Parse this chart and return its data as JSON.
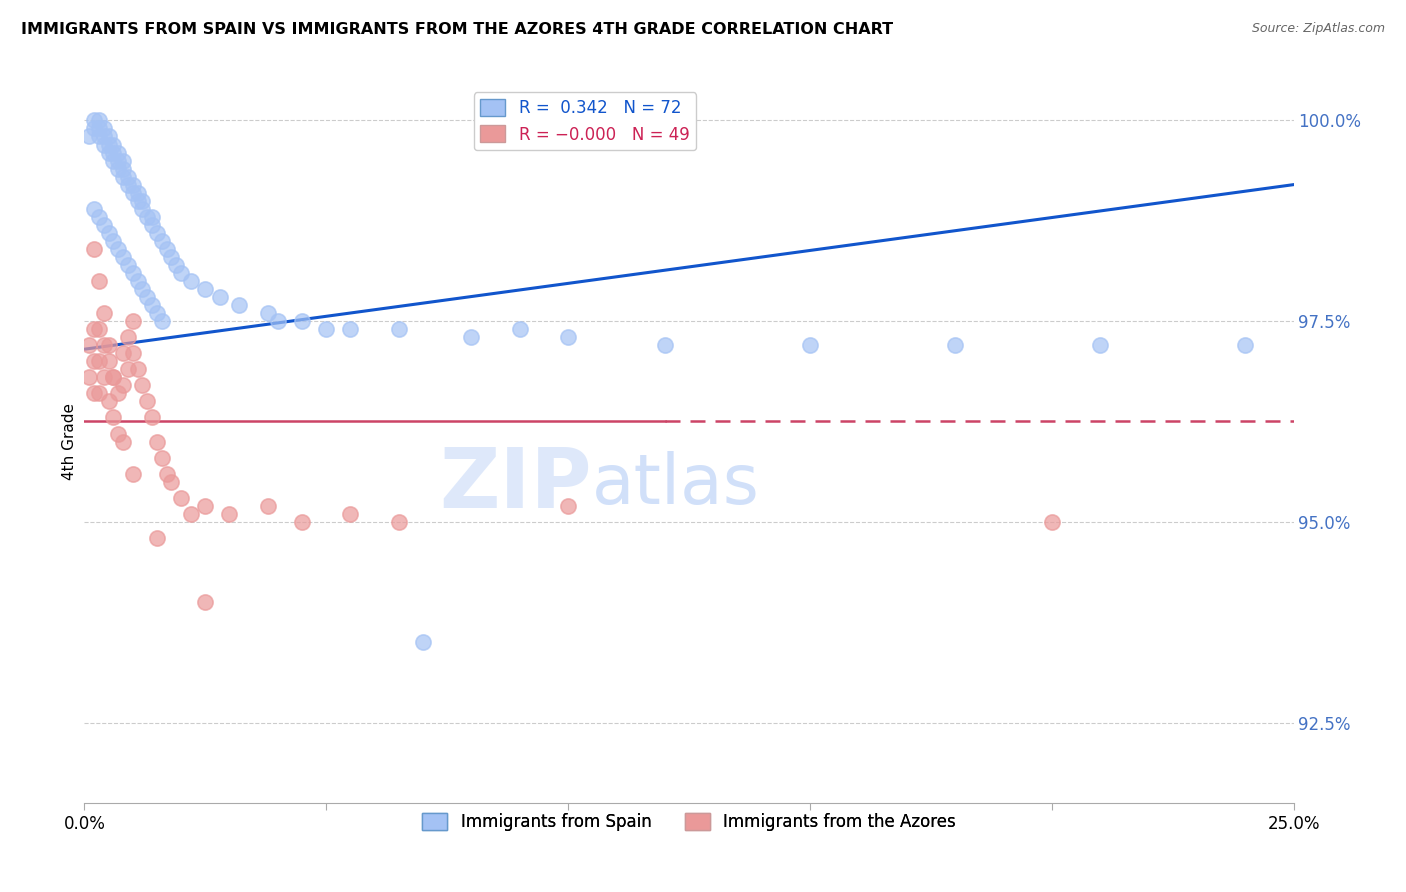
{
  "title": "IMMIGRANTS FROM SPAIN VS IMMIGRANTS FROM THE AZORES 4TH GRADE CORRELATION CHART",
  "source": "Source: ZipAtlas.com",
  "ylabel": "4th Grade",
  "xlim": [
    0.0,
    0.25
  ],
  "ylim": [
    0.915,
    1.005
  ],
  "yticks": [
    1.0,
    0.975,
    0.95,
    0.925
  ],
  "ytick_labels": [
    "100.0%",
    "97.5%",
    "95.0%",
    "92.5%"
  ],
  "R_blue": 0.342,
  "N_blue": 72,
  "R_pink": -0.0,
  "N_pink": 49,
  "blue_color": "#a4c2f4",
  "pink_color": "#ea9999",
  "trend_blue_color": "#1155cc",
  "trend_pink_color": "#cc4466",
  "legend_label_blue": "Immigrants from Spain",
  "legend_label_pink": "Immigrants from the Azores",
  "blue_x": [
    0.001,
    0.002,
    0.002,
    0.003,
    0.003,
    0.003,
    0.004,
    0.004,
    0.004,
    0.005,
    0.005,
    0.005,
    0.006,
    0.006,
    0.006,
    0.007,
    0.007,
    0.007,
    0.008,
    0.008,
    0.008,
    0.009,
    0.009,
    0.01,
    0.01,
    0.011,
    0.011,
    0.012,
    0.012,
    0.013,
    0.014,
    0.014,
    0.015,
    0.016,
    0.017,
    0.018,
    0.019,
    0.02,
    0.022,
    0.025,
    0.028,
    0.032,
    0.038,
    0.045,
    0.055,
    0.065,
    0.08,
    0.1,
    0.12,
    0.15,
    0.18,
    0.21,
    0.24,
    0.002,
    0.003,
    0.004,
    0.005,
    0.006,
    0.007,
    0.008,
    0.009,
    0.01,
    0.011,
    0.012,
    0.013,
    0.014,
    0.015,
    0.016,
    0.04,
    0.05,
    0.07,
    0.09
  ],
  "blue_y": [
    0.998,
    0.999,
    1.0,
    0.998,
    0.999,
    1.0,
    0.997,
    0.998,
    0.999,
    0.996,
    0.997,
    0.998,
    0.995,
    0.996,
    0.997,
    0.994,
    0.995,
    0.996,
    0.993,
    0.994,
    0.995,
    0.992,
    0.993,
    0.991,
    0.992,
    0.99,
    0.991,
    0.989,
    0.99,
    0.988,
    0.987,
    0.988,
    0.986,
    0.985,
    0.984,
    0.983,
    0.982,
    0.981,
    0.98,
    0.979,
    0.978,
    0.977,
    0.976,
    0.975,
    0.974,
    0.974,
    0.973,
    0.973,
    0.972,
    0.972,
    0.972,
    0.972,
    0.972,
    0.989,
    0.988,
    0.987,
    0.986,
    0.985,
    0.984,
    0.983,
    0.982,
    0.981,
    0.98,
    0.979,
    0.978,
    0.977,
    0.976,
    0.975,
    0.975,
    0.974,
    0.935,
    0.974
  ],
  "pink_x": [
    0.001,
    0.001,
    0.002,
    0.002,
    0.002,
    0.003,
    0.003,
    0.003,
    0.004,
    0.004,
    0.005,
    0.005,
    0.006,
    0.006,
    0.007,
    0.007,
    0.008,
    0.008,
    0.009,
    0.009,
    0.01,
    0.01,
    0.011,
    0.012,
    0.013,
    0.014,
    0.015,
    0.016,
    0.017,
    0.018,
    0.02,
    0.022,
    0.025,
    0.03,
    0.038,
    0.045,
    0.055,
    0.065,
    0.1,
    0.2,
    0.002,
    0.003,
    0.004,
    0.005,
    0.006,
    0.008,
    0.01,
    0.015,
    0.025
  ],
  "pink_y": [
    0.972,
    0.968,
    0.974,
    0.97,
    0.966,
    0.974,
    0.97,
    0.966,
    0.972,
    0.968,
    0.97,
    0.965,
    0.968,
    0.963,
    0.966,
    0.961,
    0.971,
    0.967,
    0.973,
    0.969,
    0.975,
    0.971,
    0.969,
    0.967,
    0.965,
    0.963,
    0.96,
    0.958,
    0.956,
    0.955,
    0.953,
    0.951,
    0.952,
    0.951,
    0.952,
    0.95,
    0.951,
    0.95,
    0.952,
    0.95,
    0.984,
    0.98,
    0.976,
    0.972,
    0.968,
    0.96,
    0.956,
    0.948,
    0.94
  ],
  "pink_trend_y": 0.9625,
  "blue_trend_x0": 0.0,
  "blue_trend_x1": 0.25,
  "blue_trend_y0": 0.9715,
  "blue_trend_y1": 0.992,
  "watermark_zip": "ZIP",
  "watermark_atlas": "atlas",
  "grid_color": "#cccccc",
  "tick_color": "#4472C4",
  "background_color": "#ffffff"
}
